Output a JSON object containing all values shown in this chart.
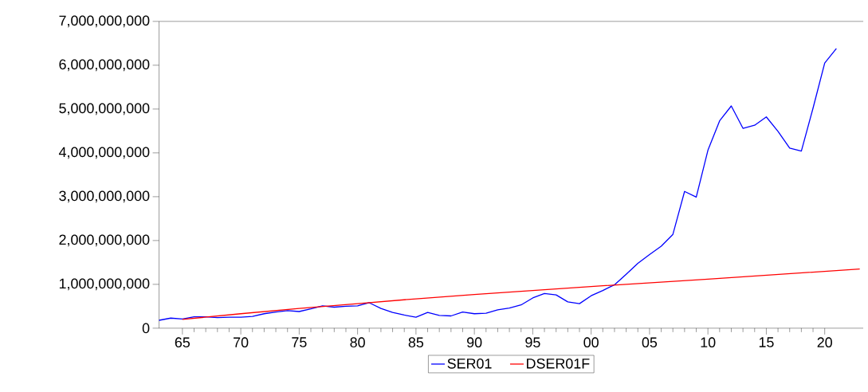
{
  "chart_data": {
    "type": "line",
    "x": [
      1963,
      1964,
      1965,
      1966,
      1967,
      1968,
      1969,
      1970,
      1971,
      1972,
      1973,
      1974,
      1975,
      1976,
      1977,
      1978,
      1979,
      1980,
      1981,
      1982,
      1983,
      1984,
      1985,
      1986,
      1987,
      1988,
      1989,
      1990,
      1991,
      1992,
      1993,
      1994,
      1995,
      1996,
      1997,
      1998,
      1999,
      2000,
      2001,
      2002,
      2003,
      2004,
      2005,
      2006,
      2007,
      2008,
      2009,
      2010,
      2011,
      2012,
      2013,
      2014,
      2015,
      2016,
      2017,
      2018,
      2019,
      2020,
      2021
    ],
    "series": [
      {
        "name": "SER01",
        "color": "#0000ff",
        "values": [
          180000000,
          230000000,
          210000000,
          260000000,
          260000000,
          240000000,
          250000000,
          250000000,
          270000000,
          330000000,
          370000000,
          400000000,
          380000000,
          440000000,
          510000000,
          480000000,
          500000000,
          510000000,
          580000000,
          450000000,
          360000000,
          300000000,
          250000000,
          360000000,
          290000000,
          280000000,
          370000000,
          330000000,
          340000000,
          420000000,
          460000000,
          530000000,
          690000000,
          790000000,
          760000000,
          600000000,
          560000000,
          740000000,
          860000000,
          990000000,
          1230000000,
          1480000000,
          1680000000,
          1870000000,
          2140000000,
          3120000000,
          2990000000,
          4060000000,
          4730000000,
          5070000000,
          4560000000,
          4630000000,
          4820000000,
          4490000000,
          4110000000,
          4040000000,
          5020000000,
          6050000000,
          6380000000
        ]
      },
      {
        "name": "DSER01F",
        "color": "#ff0000",
        "x": [
          1965,
          1970,
          1975,
          1980,
          1985,
          1990,
          2000,
          2010,
          2023
        ],
        "values": [
          200000000,
          330000000,
          450000000,
          560000000,
          670000000,
          770000000,
          950000000,
          1120000000,
          1350000000
        ]
      }
    ],
    "xlim": [
      1963,
      2023.3
    ],
    "xticks": [
      {
        "value": 1965,
        "label": "65"
      },
      {
        "value": 1970,
        "label": "70"
      },
      {
        "value": 1975,
        "label": "75"
      },
      {
        "value": 1980,
        "label": "80"
      },
      {
        "value": 1985,
        "label": "85"
      },
      {
        "value": 1990,
        "label": "90"
      },
      {
        "value": 1995,
        "label": "95"
      },
      {
        "value": 2000,
        "label": "00"
      },
      {
        "value": 2005,
        "label": "05"
      },
      {
        "value": 2010,
        "label": "10"
      },
      {
        "value": 2015,
        "label": "15"
      },
      {
        "value": 2020,
        "label": "20"
      }
    ],
    "ylim": [
      0,
      7000000000
    ],
    "yticks": [
      0,
      {
        "value": 1000000000,
        "label": "1,000,000,000"
      },
      {
        "value": 2000000000,
        "label": "2,000,000,000"
      },
      {
        "value": 3000000000,
        "label": "3,000,000,000"
      },
      {
        "value": 4000000000,
        "label": "4,000,000,000"
      },
      {
        "value": 5000000000,
        "label": "5,000,000,000"
      },
      {
        "value": 6000000000,
        "label": "6,000,000,000"
      },
      {
        "value": 7000000000,
        "label": "7,000,000,000"
      }
    ],
    "legend": "bottom",
    "grid": false
  }
}
